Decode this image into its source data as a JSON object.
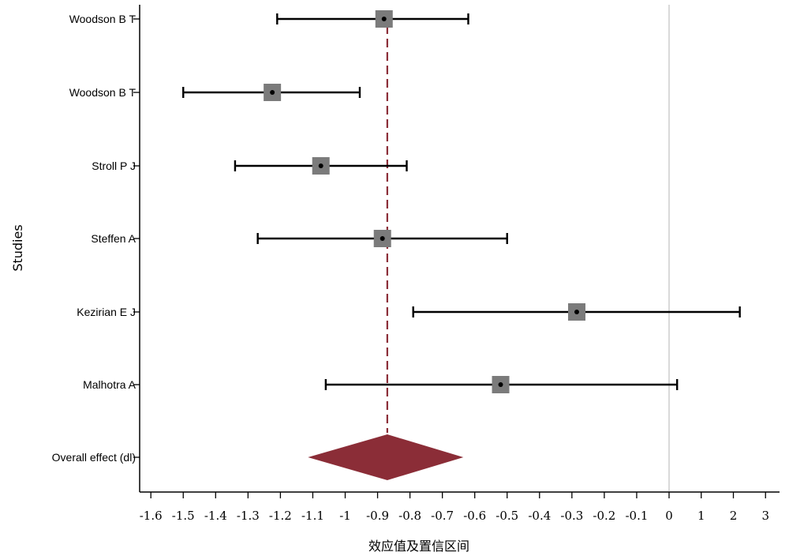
{
  "chart_data": {
    "type": "forest",
    "xlabel": "效应值及置信区间",
    "ylabel": "Studies",
    "studies": [
      {
        "name": "Woodson B T",
        "estimate": -0.88,
        "lower": -1.21,
        "upper": -0.62
      },
      {
        "name": "Woodson B T",
        "estimate": -1.225,
        "lower": -1.5,
        "upper": -0.955
      },
      {
        "name": "Stroll P J",
        "estimate": -1.075,
        "lower": -1.34,
        "upper": -0.81
      },
      {
        "name": "Steffen A",
        "estimate": -0.885,
        "lower": -1.27,
        "upper": -0.5
      },
      {
        "name": "Kezirian E J",
        "estimate": -0.285,
        "lower": -0.79,
        "upper": 2.2
      },
      {
        "name": "Malhotra A",
        "estimate": -0.52,
        "lower": -1.06,
        "upper": 0.25
      }
    ],
    "overall": {
      "name": "Overall effect (dl)",
      "estimate": -0.87,
      "lower": -1.115,
      "upper": -0.635
    },
    "ticks": [
      {
        "label": "-1.6",
        "value": -1.6
      },
      {
        "label": "-1.5",
        "value": -1.5
      },
      {
        "label": "-1.4",
        "value": -1.4
      },
      {
        "label": "-1.3",
        "value": -1.3
      },
      {
        "label": "-1.2",
        "value": -1.2
      },
      {
        "label": "-1.1",
        "value": -1.1
      },
      {
        "label": "-1",
        "value": -1
      },
      {
        "label": "-0.9",
        "value": -0.9
      },
      {
        "label": "-0.8",
        "value": -0.8
      },
      {
        "label": "-0.7",
        "value": -0.7
      },
      {
        "label": "-0.6",
        "value": -0.6
      },
      {
        "label": "-0.5",
        "value": -0.5
      },
      {
        "label": "-0.4",
        "value": -0.4
      },
      {
        "label": "-0.3",
        "value": -0.3
      },
      {
        "label": "-0.2",
        "value": -0.2
      },
      {
        "label": "-0.1",
        "value": -0.1
      },
      {
        "label": "0",
        "value": 0
      },
      {
        "label": "1",
        "value": 1
      },
      {
        "label": "2",
        "value": 2
      },
      {
        "label": "3",
        "value": 3
      }
    ],
    "reference_line": 0,
    "colors": {
      "box": "#7b7b7b",
      "diamond": "#8b2d37",
      "overall_line": "#8b2d37",
      "reference_line": "#d9d9d9",
      "whisker": "#000000"
    }
  }
}
